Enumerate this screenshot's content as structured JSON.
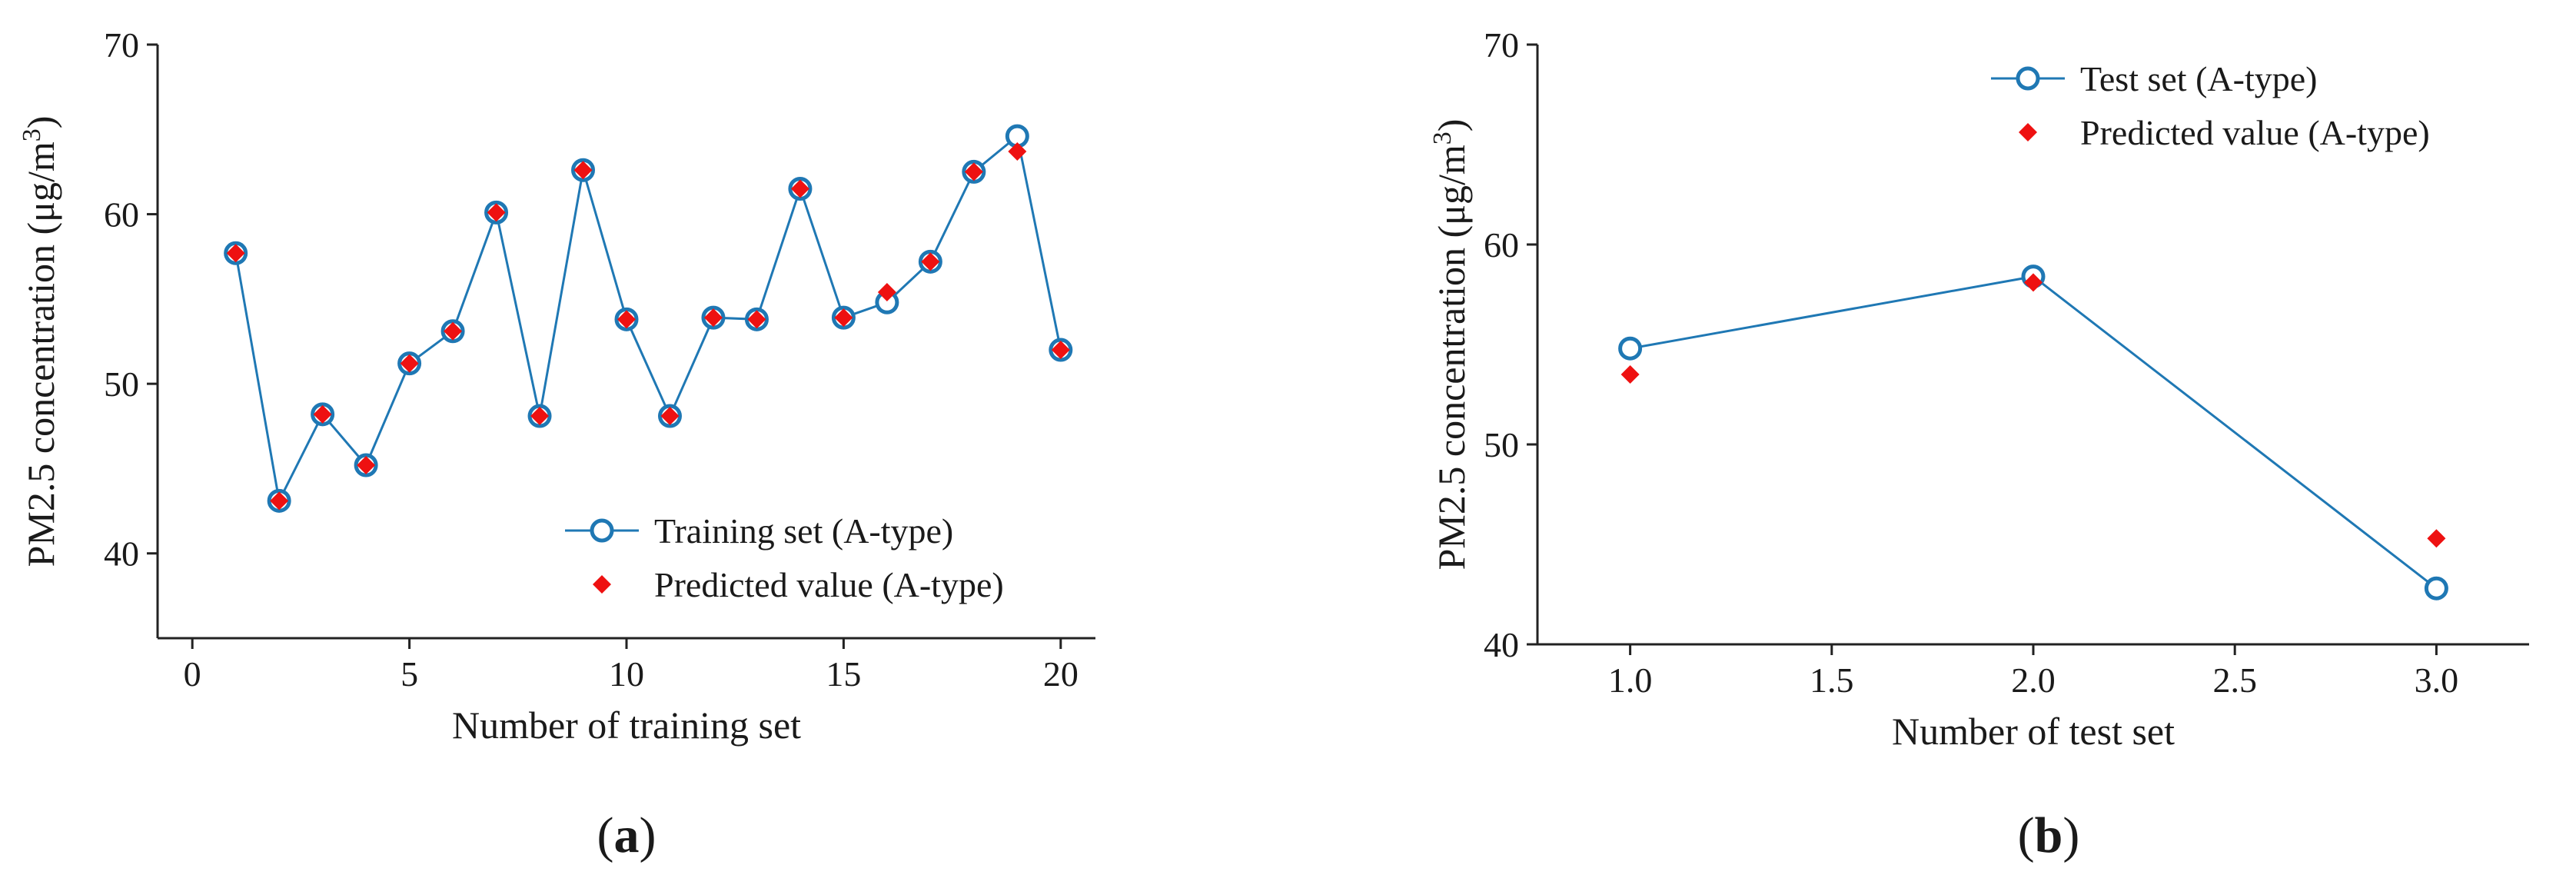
{
  "colors": {
    "series": "#1f78b4",
    "predicted": "#ee1111",
    "axis": "#222222",
    "text": "#1a1a1a"
  },
  "chart_data": [
    {
      "panel": "a",
      "type": "line",
      "panel_label": "a",
      "xlabel": "Number of training set",
      "ylabel": "PM2.5 concentration (μg/m³)",
      "ylabel_main": "PM2.5 concentration (μg/m",
      "ylabel_sup": "3",
      "ylabel_close": ")",
      "xlim": [
        -0.8,
        20.8
      ],
      "ylim": [
        35,
        70
      ],
      "xticks": [
        0,
        5,
        10,
        15,
        20
      ],
      "xtick_labels": [
        "0",
        "5",
        "10",
        "15",
        "20"
      ],
      "yticks": [
        40,
        50,
        60,
        70
      ],
      "ytick_labels": [
        "40",
        "50",
        "60",
        "70"
      ],
      "legend_position": "lower-right",
      "series": [
        {
          "name": "Training set (A-type)",
          "style": "line-open-circle",
          "x": [
            1,
            2,
            3,
            4,
            5,
            6,
            7,
            8,
            9,
            10,
            11,
            12,
            13,
            14,
            15,
            16,
            17,
            18,
            19,
            20
          ],
          "values": [
            57.7,
            43.1,
            48.2,
            45.2,
            51.2,
            53.1,
            60.1,
            48.1,
            62.6,
            53.8,
            48.1,
            53.9,
            53.8,
            61.5,
            53.9,
            54.8,
            57.2,
            62.5,
            64.6,
            52.0
          ]
        },
        {
          "name": "Predicted value (A-type)",
          "style": "red-diamond",
          "x": [
            1,
            2,
            3,
            4,
            5,
            6,
            7,
            8,
            9,
            10,
            11,
            12,
            13,
            14,
            15,
            16,
            17,
            18,
            19,
            20
          ],
          "values": [
            57.7,
            43.1,
            48.2,
            45.2,
            51.2,
            53.1,
            60.1,
            48.1,
            62.6,
            53.8,
            48.1,
            53.9,
            53.8,
            61.5,
            53.9,
            55.4,
            57.2,
            62.5,
            63.7,
            52.0
          ]
        }
      ]
    },
    {
      "panel": "b",
      "type": "line",
      "panel_label": "b",
      "xlabel": "Number of test set",
      "ylabel": "PM2.5 concentration (μg/m³)",
      "ylabel_main": "PM2.5 concentration (μg/m",
      "ylabel_sup": "3",
      "ylabel_close": ")",
      "xlim": [
        0.77,
        3.23
      ],
      "ylim": [
        40,
        70
      ],
      "xticks": [
        1.0,
        1.5,
        2.0,
        2.5,
        3.0
      ],
      "xtick_labels": [
        "1.0",
        "1.5",
        "2.0",
        "2.5",
        "3.0"
      ],
      "yticks": [
        40,
        50,
        60,
        70
      ],
      "ytick_labels": [
        "40",
        "50",
        "60",
        "70"
      ],
      "legend_position": "top-right",
      "series": [
        {
          "name": "Test set (A-type)",
          "style": "line-open-circle",
          "x": [
            1,
            2,
            3
          ],
          "values": [
            54.8,
            58.4,
            42.8
          ]
        },
        {
          "name": "Predicted value (A-type)",
          "style": "red-diamond",
          "x": [
            1,
            2,
            3
          ],
          "values": [
            53.5,
            58.1,
            45.3
          ]
        }
      ]
    }
  ]
}
